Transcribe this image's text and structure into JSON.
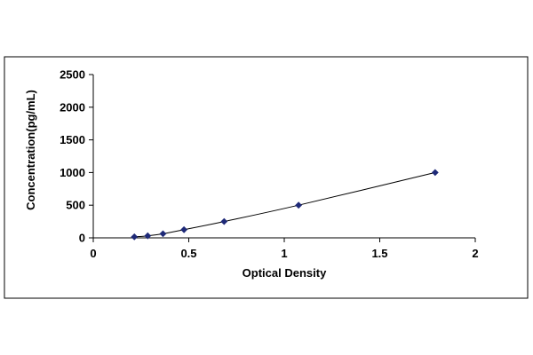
{
  "chart_data": {
    "type": "scatter",
    "title": "",
    "xlabel": "Optical Density",
    "ylabel": "Concentration(pg/mL)",
    "xlim": [
      0,
      2
    ],
    "ylim": [
      0,
      2500
    ],
    "x_ticks": [
      "0",
      "0.5",
      "1",
      "1.5",
      "2"
    ],
    "y_ticks": [
      "0",
      "500",
      "1000",
      "1500",
      "2000",
      "2500"
    ],
    "grid": false,
    "legend": "none",
    "line": "smooth",
    "marker": "diamond",
    "series_color": "#1f2a78",
    "series": [
      {
        "x": [
          0.215,
          0.285,
          0.365,
          0.475,
          0.685,
          1.075,
          1.79
        ],
        "y": [
          15.6,
          31.2,
          62.5,
          125,
          250,
          500,
          1000
        ]
      }
    ]
  }
}
